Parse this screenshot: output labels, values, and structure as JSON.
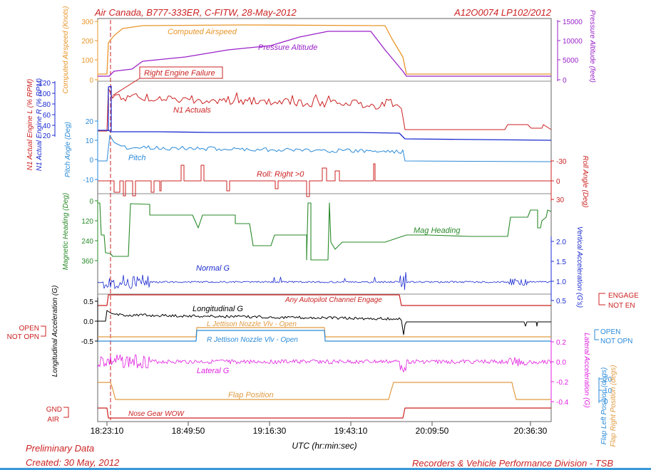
{
  "header": {
    "title": "Air Canada, B777-333ER, C-FITW, 28-May-2012",
    "report_id": "A12O0074  LP102/2012"
  },
  "footer": {
    "left_line1": "Preliminary Data",
    "left_line2": "Created: 30 May, 2012",
    "right": "Recorders & Vehicle Performance Division - TSB"
  },
  "colors": {
    "red": "#cc2222",
    "orange": "#e8962a",
    "purple": "#9a22c8",
    "darkblue": "#1a2ad0",
    "lightblue": "#2a8ad8",
    "green": "#2a8a2a",
    "black": "#000000",
    "magenta": "#e020e0",
    "blue": "#1e44e0",
    "tan": "#e09a40"
  },
  "chart_data": {
    "type": "line",
    "x_unit": "UTC (hr:min:sec)",
    "x_ticks": [
      "18:23:10",
      "18:49:50",
      "19:16:30",
      "19:43:10",
      "20:09:50",
      "20:36:30"
    ],
    "annotations": {
      "right_engine_failure": "Right Engine Failure"
    },
    "tracks": [
      {
        "id": "airspeed",
        "series_label": "Computed Airspeed",
        "axis_label": "Computed Airspeed (Knots)",
        "ticks": [
          "300",
          "200",
          "100",
          "0"
        ],
        "color": "orange"
      },
      {
        "id": "altitude",
        "series_label": "Pressure Altitude",
        "axis_label": "Pressure Altitude (feet)",
        "ticks": [
          "15000",
          "10000",
          "5000",
          "0"
        ],
        "color": "purple"
      },
      {
        "id": "n1",
        "series_label": "N1 Actuals",
        "axis_label_1": "N1 Actual Engine L (% RPM)",
        "axis_label_2": "N1 Actual Engine R (% RPM)",
        "ticks": [
          "120",
          "100",
          "80",
          "60",
          "40",
          "20"
        ],
        "color": "red"
      },
      {
        "id": "pitch",
        "series_label": "Pitch",
        "axis_label": "Pitch Angle (Deg)",
        "ticks": [
          "20",
          "10",
          "0",
          "-10"
        ],
        "color": "lightblue"
      },
      {
        "id": "roll",
        "series_label": "Roll: Right >0",
        "axis_label": "Roll Angle (Deg)",
        "ticks": [
          "-30",
          "0",
          "30"
        ],
        "color": "red"
      },
      {
        "id": "heading",
        "series_label": "Mag Heading",
        "axis_label": "Magnetic Heading (Deg)",
        "ticks": [
          "0",
          "120",
          "240",
          "360"
        ],
        "color": "green"
      },
      {
        "id": "normal_g",
        "series_label": "Normal G",
        "axis_label": "Vertical Acceleration (G's)",
        "ticks": [
          "2.0",
          "1.5",
          "1.0",
          "0.5"
        ],
        "color": "darkblue"
      },
      {
        "id": "autopilot",
        "series_label": "Any Autopilot Channel Engage",
        "states": [
          "ENGAGE",
          "NOT EN"
        ],
        "color": "red"
      },
      {
        "id": "long_g",
        "series_label": "Longitudinal G",
        "axis_label": "Longitudinal Acceleration (G)",
        "ticks": [
          "0.5",
          "0.0",
          "-0.5"
        ],
        "color": "black"
      },
      {
        "id": "jettison_l",
        "series_label": "L Jettison Nozzle Vlv - Open",
        "states": [
          "OPEN",
          "NOT OPN"
        ],
        "color": "tan"
      },
      {
        "id": "jettison_r",
        "series_label": "R Jettison Nozzle Vlv - Open",
        "states": [
          "OPEN",
          "NOT OPN"
        ],
        "color": "lightblue"
      },
      {
        "id": "lateral_g",
        "series_label": "Lateral G",
        "axis_label": "Lateral Acceleration (G)",
        "ticks": [
          "0.2",
          "0.0",
          "-0.2",
          "-0.4"
        ],
        "color": "magenta"
      },
      {
        "id": "flap",
        "series_label": "Flap Position",
        "axis_label_1": "Flap Left Position (degs)",
        "axis_label_2": "Flap Right Position (degs)",
        "ticks": [
          "20",
          "10",
          "0"
        ],
        "color": "tan"
      },
      {
        "id": "wow",
        "series_label": "Nose Gear WOW",
        "states": [
          "GND",
          "AIR"
        ],
        "color": "red"
      }
    ]
  }
}
